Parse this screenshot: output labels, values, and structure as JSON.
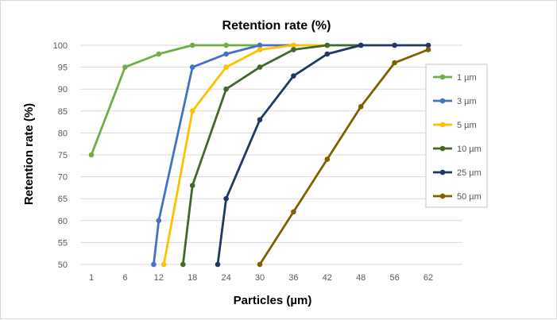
{
  "chart_data": {
    "type": "line",
    "title": "Retention rate (%)",
    "xlabel": "Particles (µm)",
    "ylabel": "Retention rate (%)",
    "categories": [
      "1",
      "6",
      "12",
      "18",
      "24",
      "30",
      "36",
      "42",
      "48",
      "56",
      "62"
    ],
    "ylim": [
      50,
      100
    ],
    "yticks": [
      50,
      55,
      60,
      65,
      70,
      75,
      80,
      85,
      90,
      95,
      100
    ],
    "grid": "horizontal",
    "legend_position": "right",
    "series": [
      {
        "name": "1 µm",
        "color": "#70ad47",
        "points": [
          [
            0,
            75
          ],
          [
            1,
            95
          ],
          [
            2,
            98
          ],
          [
            3,
            100
          ],
          [
            4,
            100
          ],
          [
            5,
            100
          ]
        ]
      },
      {
        "name": "3 µm",
        "color": "#4472c4",
        "points": [
          [
            1.85,
            50
          ],
          [
            2,
            60
          ],
          [
            3,
            95
          ],
          [
            4,
            98
          ],
          [
            5,
            100
          ],
          [
            6,
            100
          ]
        ]
      },
      {
        "name": "5 µm",
        "color": "#ffc000",
        "points": [
          [
            2.15,
            50
          ],
          [
            3,
            85
          ],
          [
            4,
            95
          ],
          [
            5,
            99
          ],
          [
            6,
            100
          ],
          [
            7,
            100
          ]
        ]
      },
      {
        "name": "10 µm",
        "color": "#43682b",
        "points": [
          [
            2.72,
            50
          ],
          [
            3,
            68
          ],
          [
            4,
            90
          ],
          [
            5,
            95
          ],
          [
            6,
            99
          ],
          [
            7,
            100
          ],
          [
            8,
            100
          ]
        ]
      },
      {
        "name": "25 µm",
        "color": "#203864",
        "points": [
          [
            3.75,
            50
          ],
          [
            4,
            65
          ],
          [
            5,
            83
          ],
          [
            6,
            93
          ],
          [
            7,
            98
          ],
          [
            8,
            100
          ],
          [
            9,
            100
          ],
          [
            10,
            100
          ]
        ]
      },
      {
        "name": "50 µm",
        "color": "#7f6000",
        "points": [
          [
            5,
            50
          ],
          [
            6,
            62
          ],
          [
            7,
            74
          ],
          [
            8,
            86
          ],
          [
            9,
            96
          ],
          [
            10,
            99
          ]
        ]
      }
    ]
  }
}
